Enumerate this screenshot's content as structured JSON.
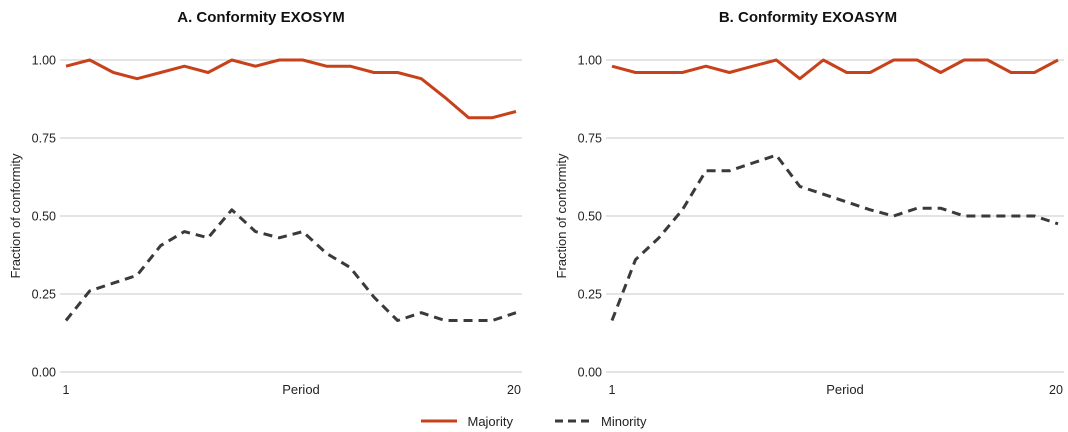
{
  "colors": {
    "majority": "#c7421a",
    "minority": "#3a3a3a",
    "grid": "#c8c8c8"
  },
  "legend": [
    {
      "label": "Majority",
      "color": "#c7421a",
      "style": "solid"
    },
    {
      "label": "Minority",
      "color": "#3a3a3a",
      "style": "dashed"
    }
  ],
  "chart_data": [
    {
      "type": "line",
      "title": "A. Conformity EXOSYM",
      "xlabel": "Period",
      "ylabel": "Fraction of conformity",
      "xlim": [
        1,
        20
      ],
      "ylim": [
        0,
        1
      ],
      "x_ticks": [
        "1",
        "20"
      ],
      "y_ticks": [
        "0.00",
        "0.25",
        "0.50",
        "0.75",
        "1.00"
      ],
      "grid": "horizontal",
      "x": [
        1,
        2,
        3,
        4,
        5,
        6,
        7,
        8,
        9,
        10,
        11,
        12,
        13,
        14,
        15,
        16,
        17,
        18,
        19,
        20
      ],
      "series": [
        {
          "name": "Majority",
          "style": "solid",
          "values": [
            0.98,
            1.0,
            0.96,
            0.94,
            0.96,
            0.98,
            0.96,
            1.0,
            0.98,
            1.0,
            1.0,
            0.98,
            0.98,
            0.96,
            0.96,
            0.94,
            0.88,
            0.815,
            0.815,
            0.835
          ]
        },
        {
          "name": "Minority",
          "style": "dashed",
          "values": [
            0.165,
            0.26,
            0.285,
            0.31,
            0.405,
            0.45,
            0.43,
            0.52,
            0.45,
            0.43,
            0.45,
            0.38,
            0.335,
            0.24,
            0.165,
            0.19,
            0.165,
            0.165,
            0.165,
            0.19
          ]
        }
      ]
    },
    {
      "type": "line",
      "title": "B. Conformity EXOASYM",
      "xlabel": "Period",
      "ylabel": "Fraction of conformity",
      "xlim": [
        1,
        20
      ],
      "ylim": [
        0,
        1
      ],
      "x_ticks": [
        "1",
        "20"
      ],
      "y_ticks": [
        "0.00",
        "0.25",
        "0.50",
        "0.75",
        "1.00"
      ],
      "grid": "horizontal",
      "x": [
        1,
        2,
        3,
        4,
        5,
        6,
        7,
        8,
        9,
        10,
        11,
        12,
        13,
        14,
        15,
        16,
        17,
        18,
        19,
        20
      ],
      "series": [
        {
          "name": "Majority",
          "style": "solid",
          "values": [
            0.98,
            0.96,
            0.96,
            0.96,
            0.98,
            0.96,
            0.98,
            1.0,
            0.94,
            1.0,
            0.96,
            0.96,
            1.0,
            1.0,
            0.96,
            1.0,
            1.0,
            0.96,
            0.96,
            1.0
          ]
        },
        {
          "name": "Minority",
          "style": "dashed",
          "values": [
            0.165,
            0.36,
            0.43,
            0.52,
            0.645,
            0.645,
            0.67,
            0.695,
            0.595,
            0.57,
            0.545,
            0.52,
            0.5,
            0.525,
            0.525,
            0.5,
            0.5,
            0.5,
            0.5,
            0.475
          ]
        }
      ]
    }
  ]
}
